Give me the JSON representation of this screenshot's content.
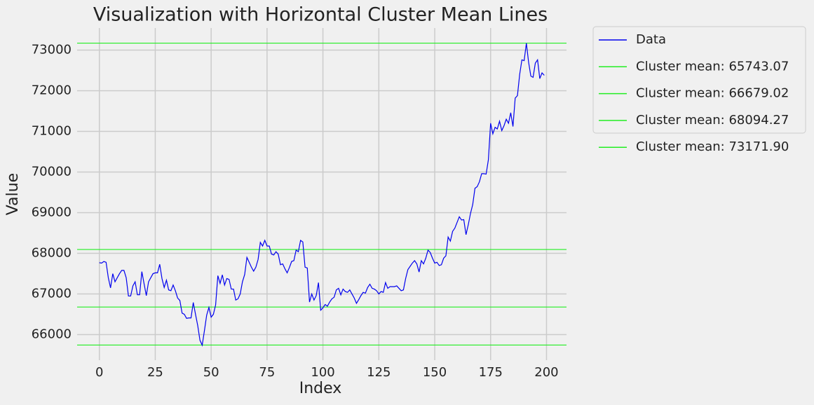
{
  "chart_data": {
    "type": "line",
    "title": "Visualization with Horizontal Cluster Mean Lines",
    "x_label": "Index",
    "y_label": "Value",
    "x": [
      0,
      1,
      2,
      3,
      4,
      5,
      6,
      7,
      8,
      9,
      10,
      11,
      12,
      13,
      14,
      15,
      16,
      17,
      18,
      19,
      20,
      21,
      22,
      23,
      24,
      25,
      26,
      27,
      28,
      29,
      30,
      31,
      32,
      33,
      34,
      35,
      36,
      37,
      38,
      39,
      40,
      41,
      42,
      43,
      44,
      45,
      46,
      47,
      48,
      49,
      50,
      51,
      52,
      53,
      54,
      55,
      56,
      57,
      58,
      59,
      60,
      61,
      62,
      63,
      64,
      65,
      66,
      67,
      68,
      69,
      70,
      71,
      72,
      73,
      74,
      75,
      76,
      77,
      78,
      79,
      80,
      81,
      82,
      83,
      84,
      85,
      86,
      87,
      88,
      89,
      90,
      91,
      92,
      93,
      94,
      95,
      96,
      97,
      98,
      99,
      100,
      101,
      102,
      103,
      104,
      105,
      106,
      107,
      108,
      109,
      110,
      111,
      112,
      113,
      114,
      115,
      116,
      117,
      118,
      119,
      120,
      121,
      122,
      123,
      124,
      125,
      126,
      127,
      128,
      129,
      130,
      131,
      132,
      133,
      134,
      135,
      136,
      137,
      138,
      139,
      140,
      141,
      142,
      143,
      144,
      145,
      146,
      147,
      148,
      149,
      150,
      151,
      152,
      153,
      154,
      155,
      156,
      157,
      158,
      159,
      160,
      161,
      162,
      163,
      164,
      165,
      166,
      167,
      168,
      169,
      170,
      171,
      172,
      173,
      174,
      175,
      176,
      177,
      178,
      179,
      180,
      181,
      182,
      183,
      184,
      185,
      186,
      187,
      188,
      189,
      190,
      191,
      192,
      193,
      194,
      195,
      196,
      197,
      198,
      199
    ],
    "series": [
      {
        "name": "Data",
        "color": "#0000ee",
        "values": [
          67770,
          67760,
          67800,
          67780,
          67400,
          67150,
          67500,
          67300,
          67400,
          67500,
          67580,
          67580,
          67400,
          66950,
          66950,
          67200,
          67300,
          66980,
          66980,
          67550,
          67250,
          66960,
          67300,
          67400,
          67500,
          67520,
          67520,
          67730,
          67380,
          67160,
          67340,
          67100,
          67080,
          67220,
          67080,
          66900,
          66840,
          66530,
          66500,
          66400,
          66410,
          66410,
          66790,
          66500,
          66220,
          65860,
          65740,
          66100,
          66480,
          66670,
          66430,
          66500,
          66730,
          67450,
          67260,
          67470,
          67220,
          67380,
          67360,
          67120,
          67120,
          66850,
          66880,
          67000,
          67300,
          67480,
          67900,
          67780,
          67660,
          67560,
          67660,
          67850,
          68270,
          68180,
          68320,
          68180,
          68180,
          67980,
          67960,
          68040,
          67980,
          67720,
          67740,
          67620,
          67520,
          67650,
          67800,
          67820,
          68080,
          68040,
          68320,
          68280,
          67660,
          67640,
          66800,
          67000,
          66850,
          66960,
          67280,
          66600,
          66660,
          66740,
          66700,
          66800,
          66880,
          66920,
          67100,
          67140,
          66980,
          67120,
          67060,
          67040,
          67100,
          67000,
          66900,
          66770,
          66860,
          66960,
          67040,
          67020,
          67160,
          67240,
          67140,
          67120,
          67080,
          67000,
          67060,
          67040,
          67280,
          67140,
          67180,
          67180,
          67180,
          67200,
          67140,
          67080,
          67100,
          67380,
          67600,
          67680,
          67760,
          67820,
          67740,
          67540,
          67820,
          67740,
          67880,
          68080,
          68020,
          67880,
          67760,
          67780,
          67700,
          67720,
          67880,
          67940,
          68400,
          68300,
          68540,
          68620,
          68760,
          68900,
          68820,
          68830,
          68460,
          68700,
          68980,
          69200,
          69600,
          69640,
          69760,
          69960,
          69960,
          69950,
          70300,
          71200,
          70940,
          71100,
          71060,
          71250,
          71020,
          71140,
          71300,
          71200,
          71460,
          71120,
          71820,
          71880,
          72400,
          72760,
          72740,
          73170,
          72700,
          72360,
          72330,
          72680,
          72760,
          72300,
          72440,
          72380
        ]
      }
    ],
    "hlines": [
      {
        "name": "Cluster mean: 65743.07",
        "value": 65743.07,
        "color": "#22ee22"
      },
      {
        "name": "Cluster mean: 66679.02",
        "value": 66679.02,
        "color": "#22ee22"
      },
      {
        "name": "Cluster mean: 68094.27",
        "value": 68094.27,
        "color": "#22ee22"
      },
      {
        "name": "Cluster mean: 73171.90",
        "value": 73171.9,
        "color": "#22ee22"
      }
    ],
    "xlim": [
      -9.95,
      208.95
    ],
    "ylim": [
      65371.6,
      73543.3
    ],
    "xticks": [
      0,
      25,
      50,
      75,
      100,
      125,
      150,
      175,
      200
    ],
    "yticks": [
      66000,
      67000,
      68000,
      69000,
      70000,
      71000,
      72000,
      73000
    ],
    "grid": true,
    "legend": "outside upper right"
  }
}
